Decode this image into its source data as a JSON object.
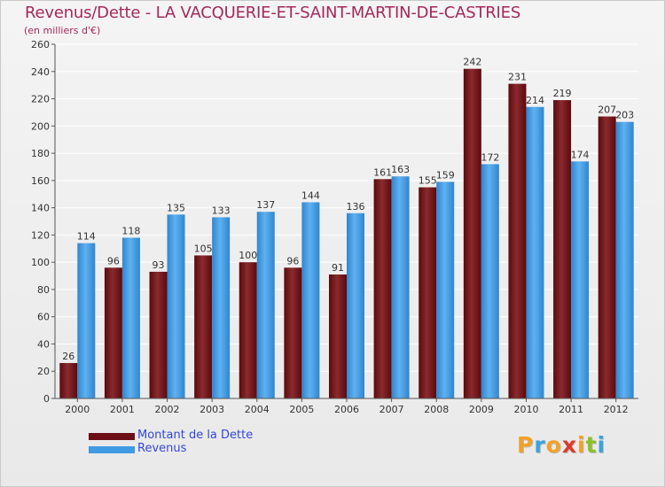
{
  "header": {
    "title": "Revenus/Dette - LA VACQUERIE-ET-SAINT-MARTIN-DE-CASTRIES",
    "subtitle": "(en milliers d'€)"
  },
  "logo": {
    "text": "Proxiti",
    "letters": [
      "P",
      "r",
      "o",
      "x",
      "i",
      "t",
      "i"
    ],
    "colors": [
      "#f3a126",
      "#3aa3de",
      "#f3a126",
      "#db3b2e",
      "#f3a126",
      "#8bbf2a",
      "#3aa3de"
    ]
  },
  "colors": {
    "dette": "#6b0f14",
    "revenus": "#3f9be2",
    "title": "#a3295c",
    "legend_text": "#3346d8",
    "grid": "#ffffff"
  },
  "chart_data": {
    "type": "bar",
    "title": "Revenus/Dette - LA VACQUERIE-ET-SAINT-MARTIN-DE-CASTRIES",
    "subtitle": "(en milliers d'€)",
    "categories": [
      "2000",
      "2001",
      "2002",
      "2003",
      "2004",
      "2005",
      "2006",
      "2007",
      "2008",
      "2009",
      "2010",
      "2011",
      "2012"
    ],
    "series": [
      {
        "name": "Montant de la Dette",
        "color": "#6b0f14",
        "values": [
          26,
          96,
          93,
          105,
          100,
          96,
          91,
          161,
          155,
          242,
          231,
          219,
          207
        ]
      },
      {
        "name": "Revenus",
        "color": "#3f9be2",
        "values": [
          114,
          118,
          135,
          133,
          137,
          144,
          136,
          163,
          159,
          172,
          214,
          174,
          203
        ]
      }
    ],
    "ylim": [
      0,
      260
    ],
    "yticks": [
      0,
      20,
      40,
      60,
      80,
      100,
      120,
      140,
      160,
      180,
      200,
      220,
      240,
      260
    ],
    "grid": true,
    "legend_position": "bottom-left",
    "data_labels": true
  }
}
